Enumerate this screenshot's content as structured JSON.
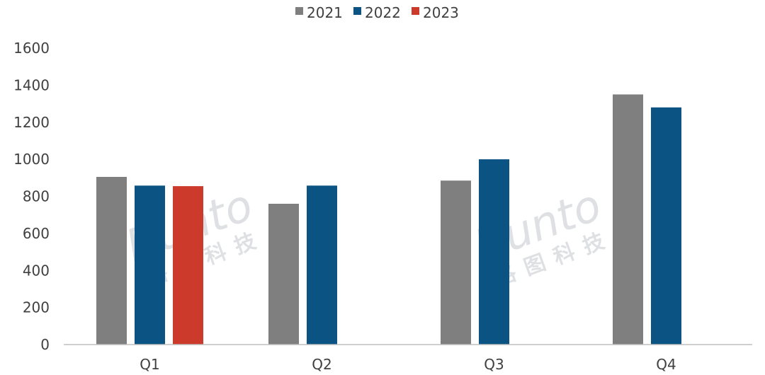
{
  "chart_data": {
    "type": "bar",
    "categories": [
      "Q1",
      "Q2",
      "Q3",
      "Q4"
    ],
    "series": [
      {
        "name": "2021",
        "color": "#7f7f7f",
        "values": [
          905,
          760,
          885,
          1350
        ]
      },
      {
        "name": "2022",
        "color": "#0b5383",
        "values": [
          858,
          858,
          1000,
          1280
        ]
      },
      {
        "name": "2023",
        "color": "#cc3a2b",
        "values": [
          855,
          null,
          null,
          null
        ]
      }
    ],
    "title": "",
    "xlabel": "",
    "ylabel": "",
    "ylim": [
      0,
      1600
    ],
    "yticks": [
      0,
      200,
      400,
      600,
      800,
      1000,
      1200,
      1400,
      1600
    ],
    "grid": false,
    "legend_position": "top-center"
  },
  "watermark": {
    "word": "Runto",
    "cn": "洛图科技"
  }
}
